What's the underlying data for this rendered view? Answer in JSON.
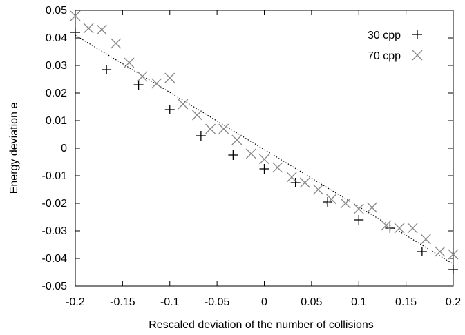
{
  "chart_data": {
    "type": "scatter",
    "title": "",
    "xlabel": "Rescaled deviation of the number of collisions",
    "ylabel": "Energy deviation e",
    "xlim": [
      -0.2,
      0.2
    ],
    "ylim": [
      -0.05,
      0.05
    ],
    "xticks": [
      "-0.2",
      "-0.15",
      "-0.1",
      "-0.05",
      "0",
      "0.05",
      "0.1",
      "0.15",
      "0.2"
    ],
    "yticks": [
      "-0.05",
      "-0.04",
      "-0.03",
      "-0.02",
      "-0.01",
      "0",
      "0.01",
      "0.02",
      "0.03",
      "0.04",
      "0.05"
    ],
    "grid": false,
    "legend_position": "top-right",
    "series": [
      {
        "name": "30 cpp",
        "marker": "plus",
        "color": "#000000",
        "points": [
          [
            -0.2,
            0.042
          ],
          [
            -0.167,
            0.0285
          ],
          [
            -0.133,
            0.023
          ],
          [
            -0.1,
            0.014
          ],
          [
            -0.067,
            0.0045
          ],
          [
            -0.033,
            -0.0025
          ],
          [
            0.0,
            -0.0075
          ],
          [
            0.033,
            -0.0125
          ],
          [
            0.067,
            -0.0195
          ],
          [
            0.1,
            -0.026
          ],
          [
            0.133,
            -0.029
          ],
          [
            0.167,
            -0.0375
          ],
          [
            0.2,
            -0.044
          ]
        ]
      },
      {
        "name": "70 cpp",
        "marker": "cross",
        "color": "#888888",
        "points": [
          [
            -0.2,
            0.048
          ],
          [
            -0.186,
            0.0435
          ],
          [
            -0.172,
            0.043
          ],
          [
            -0.157,
            0.038
          ],
          [
            -0.143,
            0.031
          ],
          [
            -0.129,
            0.026
          ],
          [
            -0.114,
            0.0235
          ],
          [
            -0.1,
            0.0255
          ],
          [
            -0.086,
            0.016
          ],
          [
            -0.071,
            0.012
          ],
          [
            -0.057,
            0.007
          ],
          [
            -0.043,
            0.007
          ],
          [
            -0.029,
            0.003
          ],
          [
            -0.014,
            -0.002
          ],
          [
            0.0,
            -0.004
          ],
          [
            0.014,
            -0.007
          ],
          [
            0.029,
            -0.0105
          ],
          [
            0.043,
            -0.0125
          ],
          [
            0.057,
            -0.015
          ],
          [
            0.071,
            -0.0185
          ],
          [
            0.086,
            -0.02
          ],
          [
            0.1,
            -0.022
          ],
          [
            0.114,
            -0.0215
          ],
          [
            0.129,
            -0.028
          ],
          [
            0.143,
            -0.029
          ],
          [
            0.157,
            -0.029
          ],
          [
            0.171,
            -0.033
          ],
          [
            0.186,
            -0.0375
          ],
          [
            0.2,
            -0.0385
          ]
        ]
      }
    ],
    "fit_line": {
      "style": "dotted",
      "color": "#000000",
      "points": [
        [
          -0.2,
          0.041
        ],
        [
          0.2,
          -0.042
        ]
      ]
    }
  }
}
